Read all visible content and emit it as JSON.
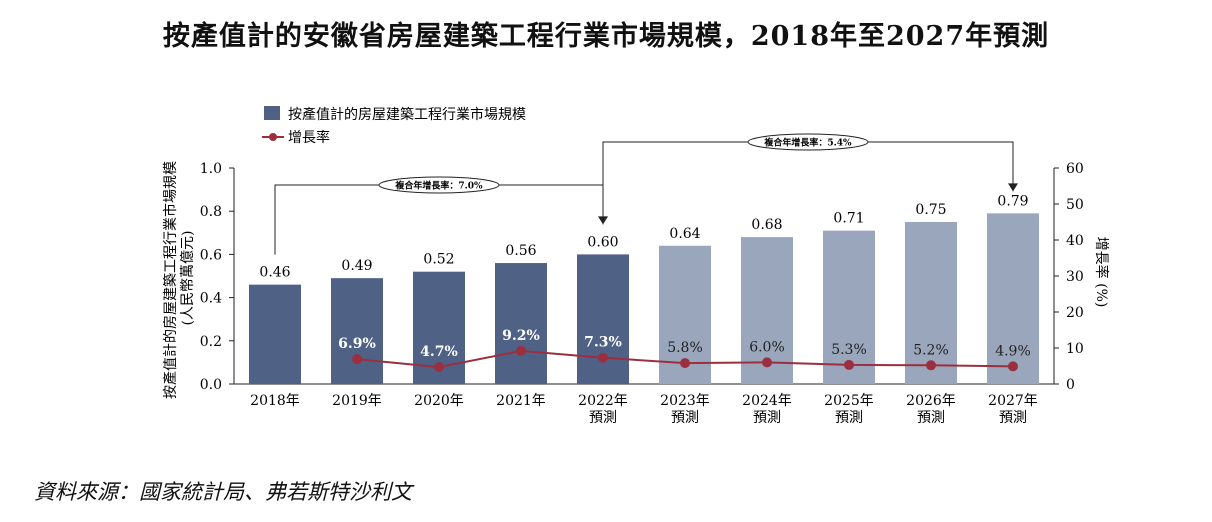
{
  "title": "按產值計的安徽省房屋建築工程行業市場規模，2018年至2027年預測",
  "source": "資料來源：國家統計局、弗若斯特沙利文",
  "chart_data": {
    "type": "bar",
    "categories": [
      "2018年",
      "2019年",
      "2020年",
      "2021年",
      "2022年",
      "2023年",
      "2024年",
      "2025年",
      "2026年",
      "2027年"
    ],
    "category_sublabels": [
      "",
      "",
      "",
      "",
      "預測",
      "預測",
      "預測",
      "預測",
      "預測",
      "預測"
    ],
    "series": [
      {
        "name": "按產值計的房屋建築工程行業市場規模",
        "type": "bar",
        "axis": "left",
        "values": [
          0.46,
          0.49,
          0.52,
          0.56,
          0.6,
          0.64,
          0.68,
          0.71,
          0.75,
          0.79
        ],
        "labels": [
          "0.46",
          "0.49",
          "0.52",
          "0.56",
          "0.60",
          "0.64",
          "0.68",
          "0.71",
          "0.75",
          "0.79"
        ]
      },
      {
        "name": "增長率",
        "type": "line",
        "axis": "right",
        "values": [
          null,
          6.9,
          4.7,
          9.2,
          7.3,
          5.8,
          6.0,
          5.3,
          5.2,
          4.9
        ],
        "labels": [
          "",
          "6.9%",
          "4.7%",
          "9.2%",
          "7.3%",
          "5.8%",
          "6.0%",
          "5.3%",
          "5.2%",
          "4.9%"
        ]
      }
    ],
    "ylabel": "按產值計的房屋建築工程行業市場規模 (人民幣萬億元)",
    "ylabel_line1": "按產值計的房屋建築工程行業市場規模",
    "ylabel_line2": "(人民幣萬億元)",
    "y2label": "增長率 (%)",
    "ylim": [
      0,
      1.0
    ],
    "yticks": [
      "0.0",
      "0.2",
      "0.4",
      "0.6",
      "0.8",
      "1.0"
    ],
    "y2lim": [
      0,
      60
    ],
    "y2ticks": [
      "0",
      "10",
      "20",
      "30",
      "40",
      "50",
      "60"
    ],
    "annotations": [
      {
        "text": "複合年增長率：7.0%",
        "from": "2018年",
        "to": "2022年"
      },
      {
        "text": "複合年增長率：5.4%",
        "from": "2022年",
        "to": "2027年"
      }
    ],
    "legend_position": "top-left",
    "colors": {
      "bar_actual": "#4f6286",
      "bar_forecast": "#9aa6bb",
      "line": "#9c2f3f",
      "label_on_dark": "#ffffff",
      "label_on_light": "#222222"
    }
  }
}
